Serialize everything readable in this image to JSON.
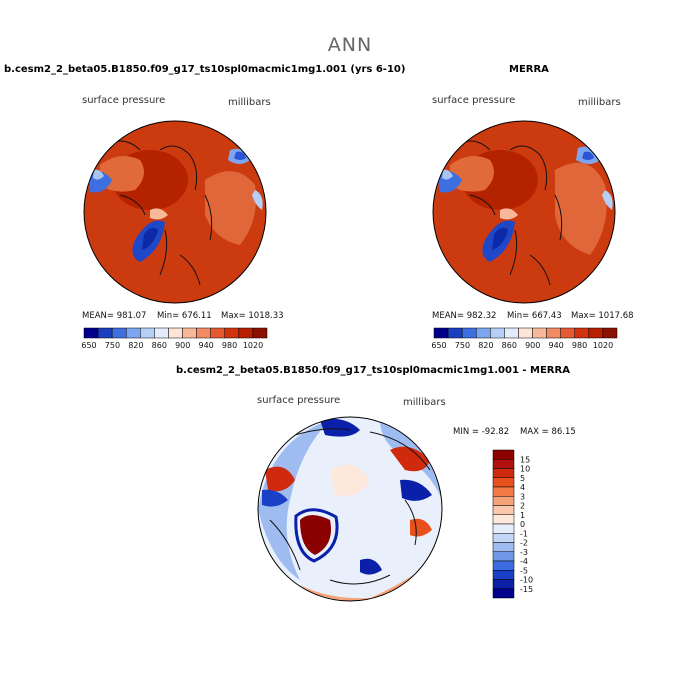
{
  "figure": {
    "season_label": "ANN"
  },
  "chart_data": [
    {
      "type": "heatmap",
      "projection": "polar-stereographic (north pole)",
      "title": "b.cesm2_2_beta05.B1850.f09_g17_ts10spl0macmic1mg1.001 (yrs 6-10)",
      "variable_label": "surface pressure",
      "units_label": "millibars",
      "stats": {
        "mean": "MEAN= 981.07",
        "min": "Min= 676.11",
        "max": "Max= 1018.33"
      },
      "colorbar": {
        "ticks": [
          "650",
          "750",
          "820",
          "860",
          "900",
          "940",
          "980",
          "1020"
        ],
        "colors": [
          "#00008b",
          "#1a3fbf",
          "#3d6fe0",
          "#7ea6f0",
          "#b5cff6",
          "#e2ecfb",
          "#fde4d6",
          "#f8b99a",
          "#f28a62",
          "#e55a33",
          "#d2330f",
          "#b62000",
          "#8a1000"
        ]
      }
    },
    {
      "type": "heatmap",
      "projection": "polar-stereographic (north pole)",
      "title": "MERRA",
      "variable_label": "surface pressure",
      "units_label": "millibars",
      "stats": {
        "mean": "MEAN= 982.32",
        "min": "Min= 667.43",
        "max": "Max= 1017.68"
      },
      "colorbar": {
        "ticks": [
          "650",
          "750",
          "820",
          "860",
          "900",
          "940",
          "980",
          "1020"
        ],
        "colors": [
          "#00008b",
          "#1a3fbf",
          "#3d6fe0",
          "#7ea6f0",
          "#b5cff6",
          "#e2ecfb",
          "#fde4d6",
          "#f8b99a",
          "#f28a62",
          "#e55a33",
          "#d2330f",
          "#b62000",
          "#8a1000"
        ]
      }
    },
    {
      "type": "heatmap",
      "projection": "polar-stereographic (north pole)",
      "title": "b.cesm2_2_beta05.B1850.f09_g17_ts10spl0macmic1mg1.001 - MERRA",
      "variable_label": "surface pressure",
      "units_label": "millibars",
      "stats": {
        "min": "MIN = -92.82",
        "max": "MAX = 86.15"
      },
      "colorbar": {
        "orientation": "vertical",
        "labels_top_to_bottom": [
          "15",
          "10",
          "5",
          "4",
          "3",
          "2",
          "1",
          "0",
          "-1",
          "-2",
          "-3",
          "-4",
          "-5",
          "-10",
          "-15"
        ],
        "colors_top_to_bottom": [
          "#8b0000",
          "#b01010",
          "#d02a0e",
          "#e8501c",
          "#f27a45",
          "#f6a278",
          "#f9c8ad",
          "#fde8dc",
          "#e6eefb",
          "#c5d6f6",
          "#9ebcf0",
          "#6f98e8",
          "#3d6be0",
          "#1a40c8",
          "#0a20a8",
          "#00008b"
        ]
      }
    }
  ]
}
